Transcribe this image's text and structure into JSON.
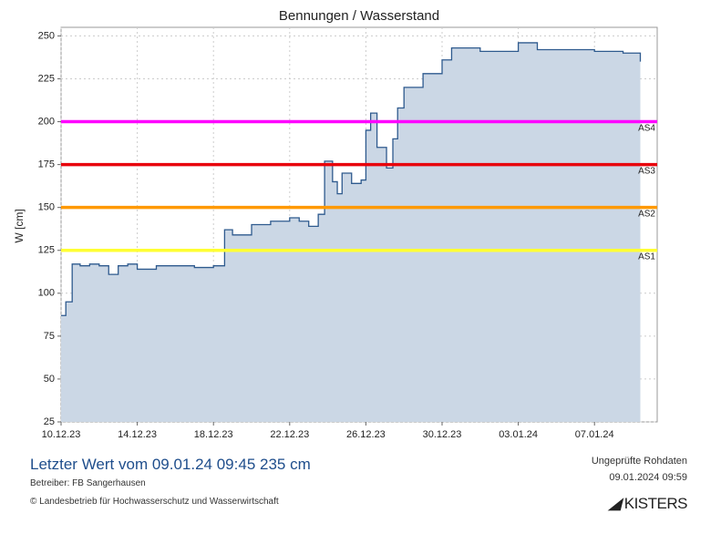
{
  "chart_data": {
    "type": "area",
    "title": "Bennungen / Wasserstand",
    "y_label": "W [cm]",
    "x": [
      "10.12.23 00:00",
      "10.12.23 06:00",
      "10.12.23 14:00",
      "11.12.23 00:00",
      "11.12.23 12:00",
      "12.12.23 00:00",
      "12.12.23 12:00",
      "13.12.23 00:00",
      "13.12.23 12:00",
      "14.12.23 00:00",
      "15.12.23 00:00",
      "16.12.23 00:00",
      "17.12.23 00:00",
      "18.12.23 00:00",
      "18.12.23 12:00",
      "18.12.23 14:00",
      "19.12.23 00:00",
      "20.12.23 00:00",
      "21.12.23 00:00",
      "22.12.23 00:00",
      "22.12.23 12:00",
      "23.12.23 00:00",
      "23.12.23 12:00",
      "23.12.23 20:00",
      "24.12.23 06:00",
      "24.12.23 12:00",
      "24.12.23 18:00",
      "25.12.23 06:00",
      "25.12.23 18:00",
      "26.12.23 00:00",
      "26.12.23 06:00",
      "26.12.23 14:00",
      "27.12.23 02:00",
      "27.12.23 10:00",
      "27.12.23 16:00",
      "28.12.23 00:00",
      "29.12.23 00:00",
      "30.12.23 00:00",
      "30.12.23 12:00",
      "01.01.24 00:00",
      "03.01.24 00:00",
      "04.01.24 00:00",
      "07.01.24 00:00",
      "08.01.24 12:00",
      "09.01.24 09:45"
    ],
    "series": [
      {
        "name": "Wasserstand",
        "color": "#2e5a8e",
        "fill": "#cbd7e5",
        "values": [
          87,
          95,
          117,
          116,
          117,
          116,
          111,
          116,
          117,
          114,
          116,
          116,
          115,
          116,
          116,
          137,
          134,
          140,
          142,
          144,
          142,
          139,
          146,
          177,
          165,
          158,
          170,
          164,
          166,
          195,
          205,
          185,
          173,
          190,
          208,
          220,
          228,
          236,
          243,
          241,
          246,
          242,
          241,
          240,
          235
        ]
      }
    ],
    "thresholds": [
      {
        "name": "AS4",
        "value": 200,
        "color": "#ff00ff"
      },
      {
        "name": "AS3",
        "value": 175,
        "color": "#e8000b"
      },
      {
        "name": "AS2",
        "value": 150,
        "color": "#ff9900"
      },
      {
        "name": "AS1",
        "value": 125,
        "color": "#ffff33"
      }
    ],
    "xlim": [
      "10.12.23 00:00",
      "10.01.24 07:00"
    ],
    "xticks": [
      {
        "value": "10.12.23 00:00",
        "label": "10.12.23"
      },
      {
        "value": "14.12.23 00:00",
        "label": "14.12.23"
      },
      {
        "value": "18.12.23 00:00",
        "label": "18.12.23"
      },
      {
        "value": "22.12.23 00:00",
        "label": "22.12.23"
      },
      {
        "value": "26.12.23 00:00",
        "label": "26.12.23"
      },
      {
        "value": "30.12.23 00:00",
        "label": "30.12.23"
      },
      {
        "value": "03.01.24 00:00",
        "label": "03.01.24"
      },
      {
        "value": "07.01.24 00:00",
        "label": "07.01.24"
      }
    ],
    "ylim": [
      25,
      255
    ],
    "yticks": [
      25,
      50,
      75,
      100,
      125,
      150,
      175,
      200,
      225,
      250
    ],
    "grid": true
  },
  "footer": {
    "latest": "Letzter Wert vom 09.01.24 09:45  235 cm",
    "operator": "Betreiber: FB Sangerhausen",
    "copyright": "© Landesbetrieb für Hochwasserschutz und Wasserwirtschaft",
    "status": "Ungeprüfte Rohdaten",
    "timestamp": "09.01.2024 09:59",
    "logo": "KISTERS"
  }
}
